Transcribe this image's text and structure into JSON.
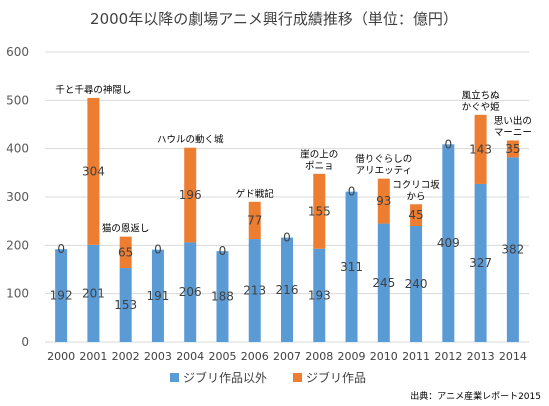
{
  "chart_data": {
    "type": "bar",
    "stacked": true,
    "title": "2000年以降の劇場アニメ興行成績推移（単位：億円）",
    "categories": [
      "2000",
      "2001",
      "2002",
      "2003",
      "2004",
      "2005",
      "2006",
      "2007",
      "2008",
      "2009",
      "2010",
      "2011",
      "2012",
      "2013",
      "2014"
    ],
    "series": [
      {
        "name": "ジブリ作品以外",
        "color": "#5b9bd5",
        "values": [
          192,
          201,
          153,
          191,
          206,
          188,
          213,
          216,
          193,
          311,
          245,
          240,
          409,
          327,
          382
        ]
      },
      {
        "name": "ジブリ作品",
        "color": "#ed7d31",
        "values": [
          0,
          304,
          65,
          0,
          196,
          0,
          77,
          0,
          155,
          0,
          93,
          45,
          0,
          143,
          35
        ]
      }
    ],
    "ylim": [
      0,
      600
    ],
    "yticks": [
      "0",
      "100",
      "200",
      "300",
      "400",
      "500",
      "600"
    ],
    "grid": true,
    "legend": "bottom",
    "annotations": [
      {
        "index": 1,
        "lines": [
          "千と千尋の神隠し"
        ]
      },
      {
        "index": 2,
        "lines": [
          "猫の恩返し"
        ]
      },
      {
        "index": 4,
        "lines": [
          "ハウルの動く城"
        ]
      },
      {
        "index": 6,
        "lines": [
          "ゲド戦記"
        ]
      },
      {
        "index": 8,
        "lines": [
          "崖の上の",
          "ポニョ"
        ]
      },
      {
        "index": 10,
        "lines": [
          "借りぐらしの",
          "アリエッティ"
        ]
      },
      {
        "index": 11,
        "lines": [
          "コクリコ坂",
          "から"
        ]
      },
      {
        "index": 13,
        "lines": [
          "風立ちぬ",
          "かぐや姫"
        ]
      },
      {
        "index": 14,
        "lines": [
          "思い出の",
          "マーニー"
        ]
      }
    ],
    "source": "出典：アニメ産業レポート2015"
  }
}
